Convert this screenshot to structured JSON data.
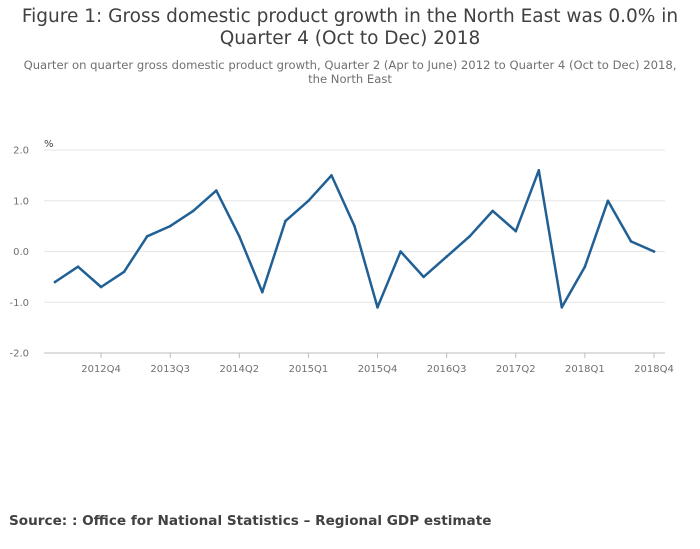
{
  "chart_data": {
    "type": "line",
    "title": "Figure 1: Gross domestic product growth in the North East was 0.0% in Quarter 4 (Oct to Dec) 2018",
    "subtitle": "Quarter on quarter gross domestic product growth, Quarter 2 (Apr to June) 2012 to Quarter 4 (Oct to Dec) 2018, the North East",
    "ylabel": "%",
    "ylim": [
      -2.0,
      2.0
    ],
    "yticks": [
      2.0,
      1.0,
      0.0,
      -1.0,
      -2.0
    ],
    "ytick_labels": [
      "2.0",
      "1.0",
      "0.0",
      "-1.0",
      "-2.0"
    ],
    "xtick_labels": [
      "2012Q4",
      "2013Q3",
      "2014Q2",
      "2015Q1",
      "2015Q4",
      "2016Q3",
      "2017Q2",
      "2018Q1",
      "2018Q4"
    ],
    "xtick_indices": [
      2,
      5,
      8,
      11,
      14,
      17,
      20,
      23,
      26
    ],
    "categories": [
      "2012Q2",
      "2012Q3",
      "2012Q4",
      "2013Q1",
      "2013Q2",
      "2013Q3",
      "2013Q4",
      "2014Q1",
      "2014Q2",
      "2014Q3",
      "2014Q4",
      "2015Q1",
      "2015Q2",
      "2015Q3",
      "2015Q4",
      "2016Q1",
      "2016Q2",
      "2016Q3",
      "2016Q4",
      "2017Q1",
      "2017Q2",
      "2017Q3",
      "2017Q4",
      "2018Q1",
      "2018Q2",
      "2018Q3",
      "2018Q4"
    ],
    "series": [
      {
        "name": "North East",
        "color": "#206095",
        "values": [
          -0.6,
          -0.3,
          -0.7,
          -0.4,
          0.3,
          0.5,
          0.8,
          1.2,
          0.3,
          -0.8,
          0.6,
          1.0,
          1.5,
          0.5,
          -1.1,
          0.0,
          -0.5,
          -0.1,
          0.3,
          0.8,
          0.4,
          1.6,
          -1.1,
          -0.3,
          1.0,
          0.2,
          0.0
        ]
      }
    ]
  },
  "source": "Source: : Office for National Statistics – Regional GDP estimate",
  "colors": {
    "line": "#206095",
    "grid": "#e6e6e6",
    "axis": "#bcbcbc"
  }
}
